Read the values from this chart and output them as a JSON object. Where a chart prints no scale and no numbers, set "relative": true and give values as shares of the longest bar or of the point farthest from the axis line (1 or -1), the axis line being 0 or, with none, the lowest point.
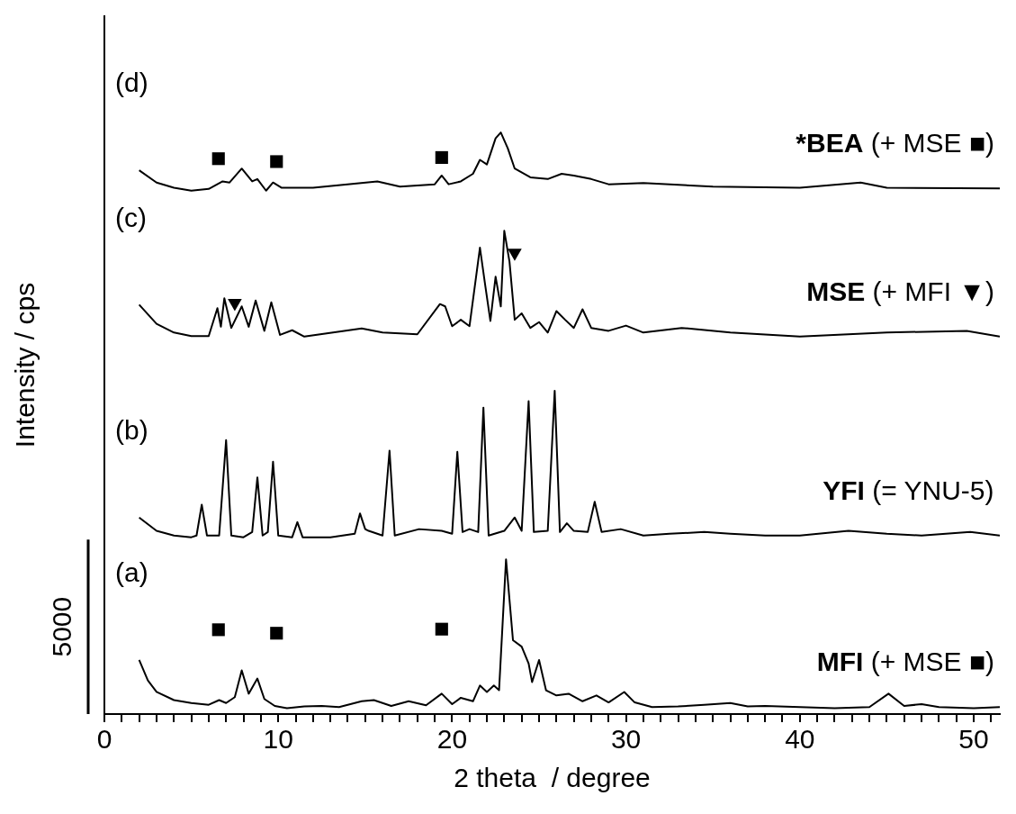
{
  "chart_data": {
    "type": "line",
    "relative": true,
    "xlabel": "2 theta  / degree",
    "ylabel": "Intensity / cps",
    "xlim": [
      0,
      51.5
    ],
    "xticks": [
      0,
      {
        "value": 1,
        "label": null
      },
      {
        "value": 2,
        "label": null
      },
      {
        "value": 3,
        "label": null
      },
      {
        "value": 4,
        "label": null
      },
      {
        "value": 5,
        "label": null
      },
      {
        "value": 6,
        "label": null
      },
      {
        "value": 7,
        "label": null
      },
      {
        "value": 8,
        "label": null
      },
      {
        "value": 9,
        "label": null
      },
      10,
      {
        "value": 11,
        "label": null
      },
      {
        "value": 12,
        "label": null
      },
      {
        "value": 13,
        "label": null
      },
      {
        "value": 14,
        "label": null
      },
      {
        "value": 15,
        "label": null
      },
      {
        "value": 16,
        "label": null
      },
      {
        "value": 17,
        "label": null
      },
      {
        "value": 18,
        "label": null
      },
      {
        "value": 19,
        "label": null
      },
      20,
      {
        "value": 21,
        "label": null
      },
      {
        "value": 22,
        "label": null
      },
      {
        "value": 23,
        "label": null
      },
      {
        "value": 24,
        "label": null
      },
      {
        "value": 25,
        "label": null
      },
      {
        "value": 26,
        "label": null
      },
      {
        "value": 27,
        "label": null
      },
      {
        "value": 28,
        "label": null
      },
      {
        "value": 29,
        "label": null
      },
      30,
      {
        "value": 31,
        "label": null
      },
      {
        "value": 32,
        "label": null
      },
      {
        "value": 33,
        "label": null
      },
      {
        "value": 34,
        "label": null
      },
      {
        "value": 35,
        "label": null
      },
      {
        "value": 36,
        "label": null
      },
      {
        "value": 37,
        "label": null
      },
      {
        "value": 38,
        "label": null
      },
      {
        "value": 39,
        "label": null
      },
      40,
      {
        "value": 41,
        "label": null
      },
      {
        "value": 42,
        "label": null
      },
      {
        "value": 43,
        "label": null
      },
      {
        "value": 44,
        "label": null
      },
      {
        "value": 45,
        "label": null
      },
      {
        "value": 46,
        "label": null
      },
      {
        "value": 47,
        "label": null
      },
      {
        "value": 48,
        "label": null
      },
      {
        "value": 49,
        "label": null
      },
      50,
      {
        "value": 51,
        "label": null
      }
    ],
    "legend": false,
    "line_style": "solid",
    "annotations": [
      "(a)",
      "(b)",
      "(c)",
      "(d)",
      "5000"
    ],
    "series": [
      {
        "type": "line",
        "name": "MFI (+ MSE ■)",
        "color": "#000000",
        "marker": "none",
        "x": [
          2,
          2.5,
          3,
          4,
          5,
          6,
          6.6,
          7,
          7.5,
          7.9,
          8.3,
          8.8,
          9.2,
          9.8,
          10.5,
          11.5,
          12.5,
          13.5,
          14.8,
          15.5,
          16.5,
          17.5,
          18.5,
          19.4,
          20,
          20.5,
          21.2,
          21.6,
          22,
          22.4,
          22.7,
          23.1,
          23.5,
          24,
          24.4,
          24.6,
          25,
          25.4,
          26,
          26.7,
          27.5,
          28.3,
          29,
          29.9,
          30.5,
          31.5,
          33,
          34.5,
          36,
          37,
          38,
          40,
          42,
          44,
          45.1,
          46,
          47,
          48,
          50,
          51.5
        ],
        "values": [
          0.093,
          0.058,
          0.038,
          0.024,
          0.019,
          0.016,
          0.024,
          0.019,
          0.029,
          0.075,
          0.035,
          0.061,
          0.026,
          0.014,
          0.01,
          0.013,
          0.014,
          0.012,
          0.022,
          0.024,
          0.014,
          0.022,
          0.015,
          0.035,
          0.017,
          0.028,
          0.022,
          0.049,
          0.038,
          0.049,
          0.041,
          0.266,
          0.127,
          0.116,
          0.087,
          0.055,
          0.093,
          0.041,
          0.032,
          0.035,
          0.022,
          0.032,
          0.02,
          0.038,
          0.02,
          0.012,
          0.013,
          0.016,
          0.019,
          0.013,
          0.014,
          0.012,
          0.01,
          0.012,
          0.035,
          0.014,
          0.017,
          0.012,
          0.01,
          0.012
        ]
      },
      {
        "type": "line",
        "name": "YFI (= YNU-5)",
        "color": "#000000",
        "marker": "none",
        "x": [
          2,
          3,
          4,
          5,
          5.3,
          5.6,
          5.9,
          6.6,
          7,
          7.3,
          8,
          8.5,
          8.8,
          9.1,
          9.4,
          9.7,
          10,
          10.8,
          11.1,
          11.4,
          13,
          14.4,
          14.7,
          15,
          15.2,
          16,
          16.4,
          16.7,
          18.1,
          19.4,
          20,
          20.3,
          20.6,
          21,
          21.5,
          21.8,
          22.1,
          23,
          23.6,
          24,
          24.4,
          24.7,
          25.5,
          25.9,
          26.2,
          26.6,
          27,
          27.8,
          28.2,
          28.6,
          29.7,
          31,
          32.5,
          34.5,
          36,
          38,
          40,
          42.8,
          45,
          47,
          49.8,
          51.5
        ],
        "values": [
          0.338,
          0.315,
          0.307,
          0.304,
          0.307,
          0.36,
          0.307,
          0.307,
          0.471,
          0.307,
          0.304,
          0.313,
          0.407,
          0.307,
          0.313,
          0.434,
          0.307,
          0.304,
          0.33,
          0.304,
          0.304,
          0.31,
          0.345,
          0.318,
          0.315,
          0.307,
          0.453,
          0.307,
          0.318,
          0.315,
          0.31,
          0.451,
          0.313,
          0.318,
          0.313,
          0.527,
          0.307,
          0.315,
          0.338,
          0.315,
          0.538,
          0.313,
          0.315,
          0.556,
          0.313,
          0.328,
          0.315,
          0.313,
          0.365,
          0.313,
          0.318,
          0.307,
          0.31,
          0.313,
          0.31,
          0.307,
          0.307,
          0.315,
          0.31,
          0.307,
          0.313,
          0.307
        ]
      },
      {
        "type": "line",
        "name": "MSE (+ MFI ▼)",
        "color": "#000000",
        "marker": "none",
        "x": [
          2,
          3,
          4,
          5,
          6,
          6.5,
          6.7,
          6.9,
          7.3,
          7.9,
          8.3,
          8.7,
          9.2,
          9.6,
          10.1,
          10.8,
          11.5,
          14.8,
          16,
          18,
          19.3,
          19.6,
          20,
          20.5,
          21,
          21.6,
          21.9,
          22.2,
          22.5,
          22.8,
          23,
          23.3,
          23.6,
          24,
          24.5,
          25,
          25.5,
          26,
          26.5,
          27,
          27.5,
          28,
          29,
          30,
          31,
          33.2,
          36,
          40,
          45,
          49.6,
          51.5
        ],
        "values": [
          0.704,
          0.671,
          0.656,
          0.65,
          0.65,
          0.698,
          0.666,
          0.715,
          0.664,
          0.701,
          0.666,
          0.711,
          0.659,
          0.708,
          0.652,
          0.66,
          0.649,
          0.663,
          0.656,
          0.653,
          0.705,
          0.701,
          0.667,
          0.678,
          0.667,
          0.802,
          0.738,
          0.676,
          0.752,
          0.701,
          0.831,
          0.778,
          0.678,
          0.689,
          0.664,
          0.674,
          0.656,
          0.693,
          0.678,
          0.664,
          0.696,
          0.664,
          0.659,
          0.668,
          0.656,
          0.664,
          0.656,
          0.649,
          0.656,
          0.659,
          0.649
        ]
      },
      {
        "type": "line",
        "name": "*BEA (+ MSE ■)",
        "color": "#000000",
        "marker": "none",
        "x": [
          2,
          3,
          4,
          5,
          6,
          6.8,
          7.2,
          7.9,
          8.5,
          8.8,
          9.3,
          9.7,
          10.2,
          12,
          15.7,
          17,
          19,
          19.4,
          19.8,
          20.5,
          21.2,
          21.6,
          22,
          22.5,
          22.8,
          23.2,
          23.6,
          24.5,
          25.5,
          26.3,
          27,
          28,
          29,
          31,
          35,
          40,
          43.5,
          45,
          51.5
        ],
        "values": [
          0.935,
          0.914,
          0.905,
          0.9,
          0.903,
          0.916,
          0.914,
          0.938,
          0.916,
          0.92,
          0.9,
          0.914,
          0.905,
          0.905,
          0.916,
          0.907,
          0.911,
          0.926,
          0.911,
          0.916,
          0.929,
          0.953,
          0.945,
          0.99,
          1,
          0.973,
          0.938,
          0.923,
          0.92,
          0.929,
          0.926,
          0.92,
          0.911,
          0.913,
          0.907,
          0.905,
          0.914,
          0.905,
          0.904
        ]
      },
      {
        "type": "scatter",
        "color": "#000000",
        "marker": "square",
        "x": [
          6.56,
          9.9,
          19.4
        ],
        "values": [
          0.145,
          0.139,
          0.146
        ]
      },
      {
        "type": "scatter",
        "color": "#000000",
        "marker": "triangle",
        "x": [
          7.5,
          23.6
        ],
        "values": [
          0.707,
          0.793
        ]
      },
      {
        "type": "scatter",
        "color": "#000000",
        "marker": "square",
        "x": [
          6.56,
          9.9,
          19.4
        ],
        "values": [
          0.955,
          0.95,
          0.957
        ]
      }
    ]
  }
}
